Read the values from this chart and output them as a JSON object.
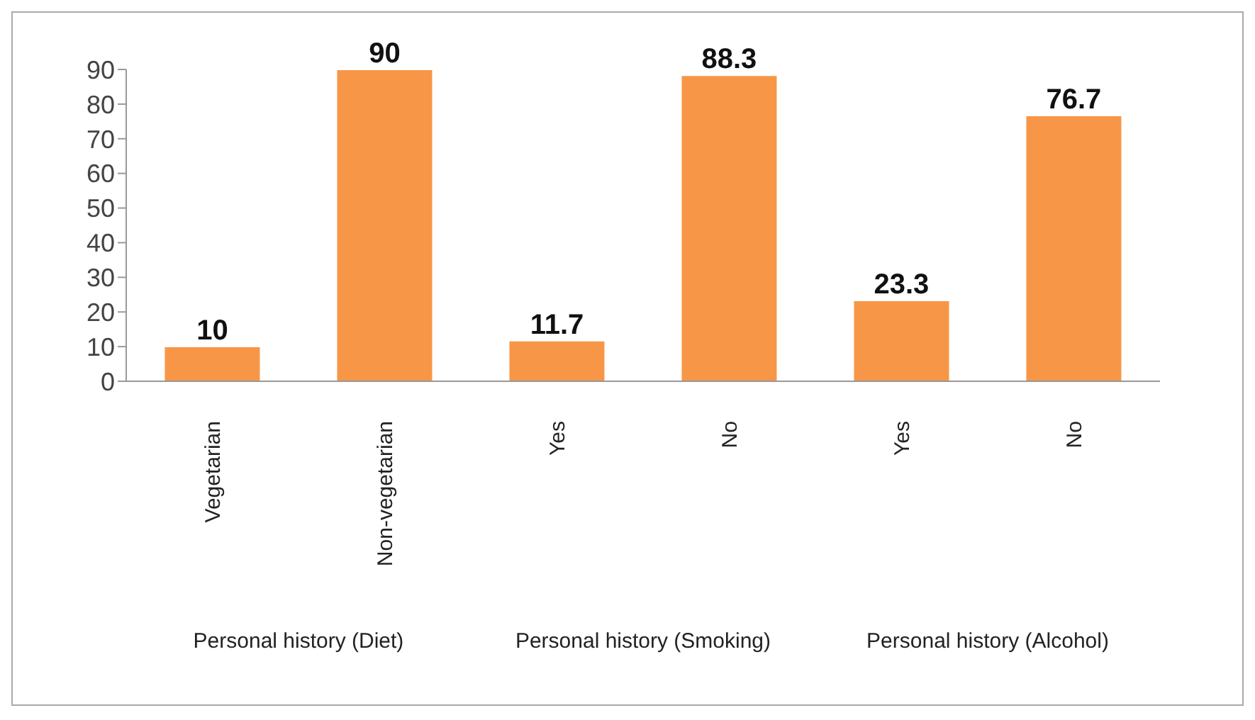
{
  "chart_data": {
    "type": "bar",
    "categories": [
      "Vegetarian",
      "Non-vegetarian",
      "Yes",
      "No",
      "Yes",
      "No"
    ],
    "values": [
      10,
      90,
      11.7,
      88.3,
      23.3,
      76.7
    ],
    "color": "#f79646",
    "ylim": [
      0,
      90
    ],
    "yticks": [
      0,
      10,
      20,
      30,
      40,
      50,
      60,
      70,
      80,
      90
    ],
    "data_labels": true,
    "annotations": [
      "Personal history (Diet)",
      "Personal history (Smoking)",
      "Personal history (Alcohol)"
    ]
  }
}
